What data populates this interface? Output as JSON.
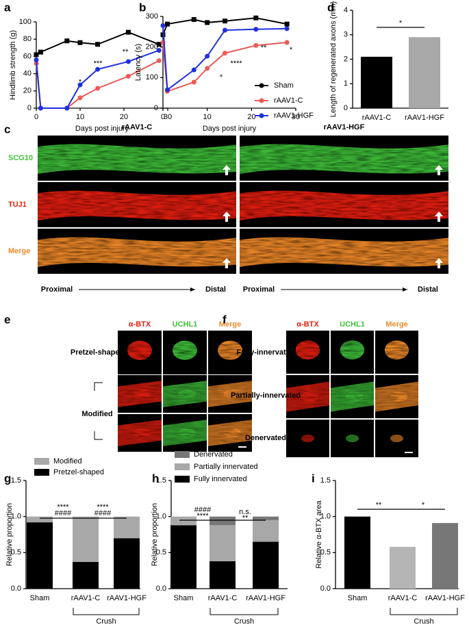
{
  "chart_data": [
    {
      "type": "line",
      "panel": "a",
      "xlabel": "Days post injury",
      "ylabel": "Hindlimb strength (g)",
      "xlim": [
        0,
        30
      ],
      "xticks": [
        0,
        10,
        20,
        30
      ],
      "ylim": [
        0,
        100
      ],
      "yticks": [
        0,
        20,
        40,
        60,
        80,
        100
      ],
      "x": [
        0,
        1,
        7,
        10,
        14,
        21,
        28
      ],
      "series": [
        {
          "color": "#000000",
          "values": [
            62,
            65,
            78,
            76,
            74,
            88,
            74
          ]
        },
        {
          "color": "#ec5a55",
          "values": [
            52,
            0,
            0,
            12,
            23,
            37,
            55
          ]
        },
        {
          "color": "#1f2fe0",
          "values": [
            56,
            0,
            0,
            27,
            45,
            54,
            67
          ]
        }
      ],
      "annotations": [
        "*",
        "***",
        "**"
      ]
    },
    {
      "type": "line",
      "panel": "b",
      "xlabel": "Days post injury",
      "ylabel": "Latency (s)",
      "xlim": [
        0,
        30
      ],
      "xticks": [
        0,
        10,
        20,
        30
      ],
      "ylim": [
        0,
        300
      ],
      "yticks": [
        0,
        100,
        200,
        300
      ],
      "x": [
        0,
        1,
        7,
        10,
        14,
        21,
        28
      ],
      "series": [
        {
          "name": "Sham",
          "color": "#000000",
          "values": [
            240,
            275,
            290,
            280,
            285,
            295,
            275
          ]
        },
        {
          "name": "rAAV1-C",
          "color": "#ec5a55",
          "values": [
            215,
            55,
            85,
            130,
            180,
            205,
            215
          ]
        },
        {
          "name": "rAAV1-HGF",
          "color": "#1f2fe0",
          "values": [
            270,
            60,
            125,
            170,
            255,
            258,
            260
          ]
        }
      ],
      "annotations": [
        "*",
        "****",
        "**",
        "*"
      ]
    },
    {
      "type": "bar",
      "panel": "d",
      "ylabel": "Length of regenerated axons (mm)",
      "categories": [
        "rAAV1-C",
        "rAAV1-HGF"
      ],
      "values": [
        2.1,
        2.9
      ],
      "colors": [
        "#000000",
        "#a8a8a8"
      ],
      "ylim": [
        0,
        4
      ],
      "yticks": [
        0,
        1,
        2,
        3,
        4
      ],
      "annotations": [
        "*"
      ]
    },
    {
      "type": "stacked_bar",
      "panel": "g",
      "ylabel": "Relative proportion",
      "categories": [
        "Sham",
        "rAAV1-C",
        "rAAV1-HGF"
      ],
      "series": [
        {
          "name": "Pretzel-shaped",
          "color": "#000000",
          "values": [
            0.92,
            0.37,
            0.7
          ]
        },
        {
          "name": "Modified",
          "color": "#a8a8a8",
          "values": [
            0.08,
            0.63,
            0.3
          ]
        }
      ],
      "ylim": [
        0,
        1.5
      ],
      "yticks": [
        {
          "value": 0,
          "label": "0.0"
        },
        0.5,
        {
          "value": 1,
          "label": "1.0"
        },
        1.5
      ],
      "annotations": [
        "****",
        "####",
        "****",
        "####"
      ],
      "group_label": "Crush"
    },
    {
      "type": "stacked_bar",
      "panel": "h",
      "ylabel": "Relative proportion",
      "categories": [
        "Sham",
        "rAAV1-C",
        "rAAV1-HGF"
      ],
      "series": [
        {
          "name": "Fully innervated",
          "color": "#000000",
          "values": [
            0.88,
            0.38,
            0.65
          ]
        },
        {
          "name": "Partially innervated",
          "color": "#a8a8a8",
          "values": [
            0.12,
            0.5,
            0.3
          ]
        },
        {
          "name": "Denervated",
          "color": "#777777",
          "values": [
            0,
            0.12,
            0.05
          ]
        }
      ],
      "ylim": [
        0,
        1.5
      ],
      "yticks": [
        {
          "value": 0,
          "label": "0.0"
        },
        0.5,
        {
          "value": 1,
          "label": "1.0"
        },
        1.5
      ],
      "annotations": [
        "####",
        "****",
        "n.s.",
        "**"
      ],
      "group_label": "Crush"
    },
    {
      "type": "bar",
      "panel": "i",
      "ylabel": "Relative α-BTX area",
      "categories": [
        "Sham",
        "rAAV1-C",
        "rAAV1-HGF"
      ],
      "values": [
        1,
        0.58,
        0.91
      ],
      "colors": [
        "#000000",
        "#b5b5b5",
        "#777777"
      ],
      "ylim": [
        0,
        1.5
      ],
      "yticks": [
        {
          "value": 0,
          "label": "0.0"
        },
        0.5,
        {
          "value": 1,
          "label": "1.0"
        },
        1.5
      ],
      "annotations": [
        "**",
        "*"
      ],
      "group_label": "Crush"
    }
  ],
  "image_panels": {
    "c": {
      "panel": "c",
      "columns": [
        "rAAV1-C",
        "rAAV1-HGF"
      ],
      "rows": [
        "SCG10",
        "TUJ1",
        "Merge"
      ],
      "axis": [
        "Proximal",
        "Distal",
        "Proximal",
        "Distal"
      ]
    },
    "e": {
      "panel": "e",
      "columns": [
        "α-BTX",
        "UCHL1",
        "Merge"
      ],
      "rows": [
        "Pretzel-shaped",
        "Modified"
      ]
    },
    "f": {
      "panel": "f",
      "columns": [
        "α-BTX",
        "UCHL1",
        "Merge"
      ],
      "rows": [
        "Fully-innervated",
        "Partially-innervated",
        "Denervated"
      ]
    }
  }
}
